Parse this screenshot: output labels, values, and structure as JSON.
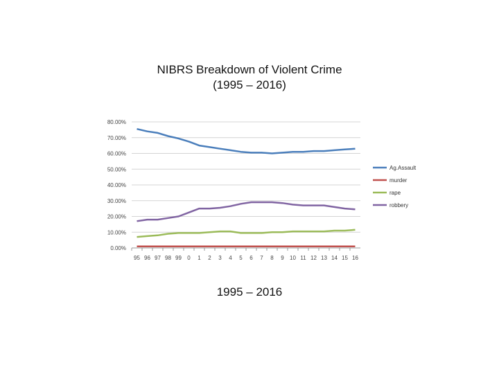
{
  "title_line1": "NIBRS Breakdown of Violent Crime",
  "title_line2": "(1995 – 2016)",
  "caption": "1995 – 2016",
  "chart_data": {
    "type": "line",
    "categories": [
      "95",
      "96",
      "97",
      "98",
      "99",
      "0",
      "1",
      "2",
      "3",
      "4",
      "5",
      "6",
      "7",
      "8",
      "9",
      "10",
      "11",
      "12",
      "13",
      "14",
      "15",
      "16"
    ],
    "y_ticks": [
      "0.00%",
      "10.00%",
      "20.00%",
      "30.00%",
      "40.00%",
      "50.00%",
      "60.00%",
      "70.00%",
      "80.00%"
    ],
    "ylim": [
      0,
      80
    ],
    "grid": true,
    "legend_position": "right",
    "series": [
      {
        "name": "Ag.Assault",
        "color": "#4a7ebb",
        "values": [
          75.5,
          74,
          73,
          71,
          69.5,
          67.5,
          65,
          64,
          63,
          62,
          61,
          60.5,
          60.5,
          60,
          60.5,
          61,
          61,
          61.5,
          61.5,
          62,
          62.5,
          63
        ]
      },
      {
        "name": "murder",
        "color": "#c0504d",
        "values": [
          1,
          1,
          1,
          1,
          1,
          1,
          1,
          1,
          1,
          1,
          1,
          1,
          1,
          1,
          1,
          1,
          1,
          1,
          1,
          1,
          1,
          1
        ]
      },
      {
        "name": "rape",
        "color": "#9bbb59",
        "values": [
          7,
          7.5,
          8,
          9,
          9.5,
          9.5,
          9.5,
          10,
          10.5,
          10.5,
          9.5,
          9.5,
          9.5,
          10,
          10,
          10.5,
          10.5,
          10.5,
          10.5,
          11,
          11,
          11.5
        ]
      },
      {
        "name": "robbery",
        "color": "#8064a2",
        "values": [
          17,
          18,
          18,
          19,
          20,
          22.5,
          25,
          25,
          25.5,
          26.5,
          28,
          29,
          29,
          29,
          28.5,
          27.5,
          27,
          27,
          27,
          26,
          25,
          24.5
        ]
      }
    ]
  }
}
